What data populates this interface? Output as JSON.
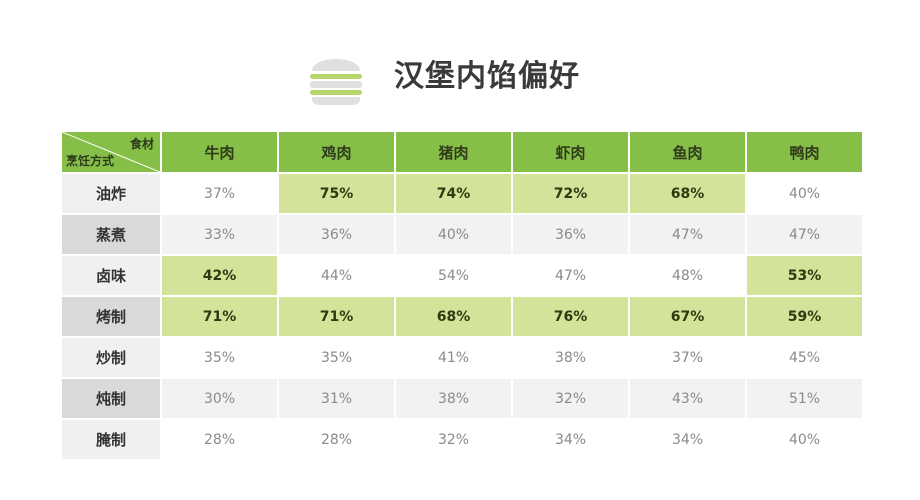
{
  "title": "汉堡内馅偏好",
  "icon": "hamburger-icon",
  "colors": {
    "header_green": "#86bf48",
    "highlight_green": "#d3e39a",
    "burger_gray": "#e0e0e0",
    "burger_green": "#b6d56a"
  },
  "chart_data": {
    "type": "table",
    "title": "汉堡内馅偏好",
    "corner": {
      "column_header": "食材",
      "row_header": "烹饪方式"
    },
    "columns": [
      "牛肉",
      "鸡肉",
      "猪肉",
      "虾肉",
      "鱼肉",
      "鸭肉"
    ],
    "rows": [
      {
        "label": "油炸",
        "values": [
          "37%",
          "75%",
          "74%",
          "72%",
          "68%",
          "40%"
        ],
        "highlight": [
          false,
          true,
          true,
          true,
          true,
          false
        ]
      },
      {
        "label": "蒸煮",
        "values": [
          "33%",
          "36%",
          "40%",
          "36%",
          "47%",
          "47%"
        ],
        "highlight": [
          false,
          false,
          false,
          false,
          false,
          false
        ]
      },
      {
        "label": "卤味",
        "values": [
          "42%",
          "44%",
          "54%",
          "47%",
          "48%",
          "53%"
        ],
        "highlight": [
          true,
          false,
          false,
          false,
          false,
          true
        ]
      },
      {
        "label": "烤制",
        "values": [
          "71%",
          "71%",
          "68%",
          "76%",
          "67%",
          "59%"
        ],
        "highlight": [
          true,
          true,
          true,
          true,
          true,
          true
        ]
      },
      {
        "label": "炒制",
        "values": [
          "35%",
          "35%",
          "41%",
          "38%",
          "37%",
          "45%"
        ],
        "highlight": [
          false,
          false,
          false,
          false,
          false,
          false
        ]
      },
      {
        "label": "炖制",
        "values": [
          "30%",
          "31%",
          "38%",
          "32%",
          "43%",
          "51%"
        ],
        "highlight": [
          false,
          false,
          false,
          false,
          false,
          false
        ]
      },
      {
        "label": "腌制",
        "values": [
          "28%",
          "28%",
          "32%",
          "34%",
          "34%",
          "40%"
        ],
        "highlight": [
          false,
          false,
          false,
          false,
          false,
          false
        ]
      }
    ]
  }
}
